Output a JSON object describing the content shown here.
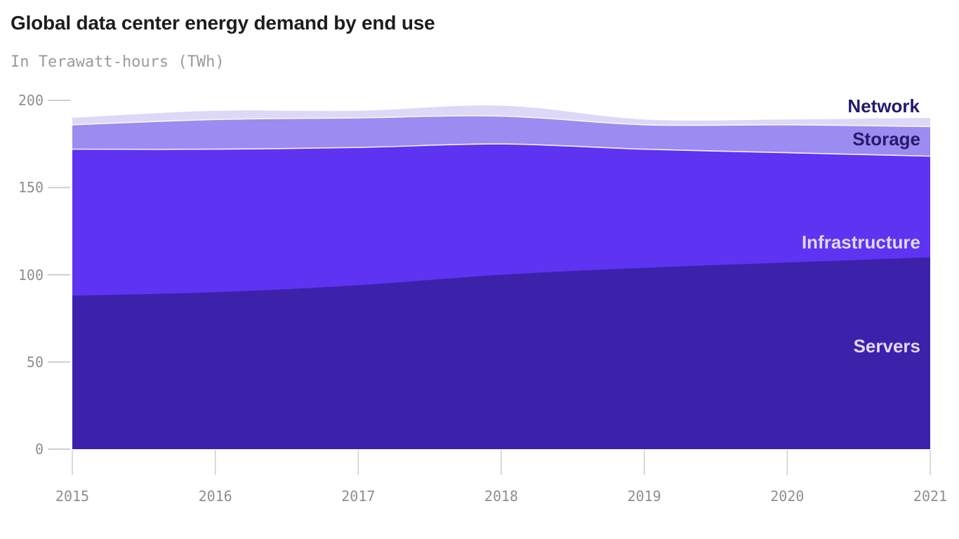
{
  "header": {
    "title": "Global data center energy demand by end use",
    "subtitle": "In Terawatt-hours (TWh)"
  },
  "chart_data": {
    "type": "area",
    "stacked": true,
    "title": "Global data center energy demand by end use",
    "subtitle": "In Terawatt-hours (TWh)",
    "unit": "TWh",
    "x": [
      2015,
      2016,
      2017,
      2018,
      2019,
      2020,
      2021
    ],
    "series": [
      {
        "name": "Servers",
        "color": "#3c21aa",
        "label_color": "#ded9f8",
        "values": [
          88,
          90,
          94,
          100,
          104,
          107,
          110
        ]
      },
      {
        "name": "Infrastructure",
        "color": "#5e33f2",
        "label_color": "#ded9f8",
        "values": [
          84,
          82,
          79,
          75,
          68,
          63,
          58
        ]
      },
      {
        "name": "Storage",
        "color": "#9c8bf0",
        "label_color": "#241b6d",
        "values": [
          14,
          17,
          17,
          16,
          14,
          16,
          17
        ]
      },
      {
        "name": "Network",
        "color": "#ded7f8",
        "label_color": "#221a6e",
        "values": [
          4,
          5,
          4,
          6,
          3,
          3,
          5
        ]
      }
    ],
    "totals": [
      190,
      194,
      194,
      197,
      189,
      189,
      190
    ],
    "ylim": [
      0,
      200
    ],
    "yticks": [
      0,
      50,
      100,
      150,
      200
    ],
    "xticks": [
      "2015",
      "2016",
      "2017",
      "2018",
      "2019",
      "2020",
      "2021"
    ],
    "grid": false,
    "legend_position": "inline-right"
  },
  "style": {
    "background": "#ffffff",
    "tick_line_color": "#cfcfcf",
    "axis_text_color": "#8e8e93",
    "separator_stroke": "#ffffff"
  }
}
